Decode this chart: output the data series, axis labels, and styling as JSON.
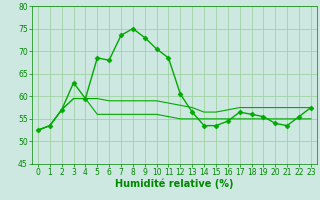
{
  "line1": {
    "x": [
      0,
      1,
      2,
      3,
      4,
      5,
      6,
      7,
      8,
      9,
      10,
      11,
      12,
      13,
      14,
      15,
      16,
      17,
      18,
      19,
      20,
      21,
      22,
      23
    ],
    "y": [
      52.5,
      53.5,
      57,
      63,
      59.5,
      68.5,
      68,
      73.5,
      75,
      73,
      70.5,
      68.5,
      60.5,
      56.5,
      53.5,
      53.5,
      54.5,
      56.5,
      56,
      55.5,
      54,
      53.5,
      55.5,
      57.5
    ],
    "color": "#00aa00",
    "marker": "D",
    "markersize": 2.5,
    "linewidth": 1.0
  },
  "line2": {
    "x": [
      0,
      1,
      2,
      3,
      4,
      5,
      6,
      7,
      8,
      9,
      10,
      11,
      12,
      13,
      14,
      15,
      16,
      17,
      18,
      19,
      20,
      21,
      22,
      23
    ],
    "y": [
      52.5,
      53.5,
      57,
      59.5,
      59.5,
      59.5,
      59,
      59,
      59,
      59,
      59,
      58.5,
      58,
      57.5,
      56.5,
      56.5,
      57,
      57.5,
      57.5,
      57.5,
      57.5,
      57.5,
      57.5,
      57.5
    ],
    "color": "#00aa00",
    "marker": null,
    "linewidth": 0.8
  },
  "line3": {
    "x": [
      0,
      1,
      2,
      3,
      4,
      5,
      6,
      7,
      8,
      9,
      10,
      11,
      12,
      13,
      14,
      15,
      16,
      17,
      18,
      19,
      20,
      21,
      22,
      23
    ],
    "y": [
      52.5,
      53.5,
      57,
      59.5,
      59.5,
      56,
      56,
      56,
      56,
      56,
      56,
      55.5,
      55,
      55,
      55,
      55,
      55,
      55,
      55,
      55,
      55,
      55,
      55,
      55
    ],
    "color": "#00aa00",
    "marker": null,
    "linewidth": 0.8
  },
  "xlabel": "Humidité relative (%)",
  "xlabel_color": "#008800",
  "xlabel_fontsize": 7,
  "xlim": [
    -0.5,
    23.5
  ],
  "ylim": [
    45,
    80
  ],
  "yticks": [
    45,
    50,
    55,
    60,
    65,
    70,
    75,
    80
  ],
  "xticks": [
    0,
    1,
    2,
    3,
    4,
    5,
    6,
    7,
    8,
    9,
    10,
    11,
    12,
    13,
    14,
    15,
    16,
    17,
    18,
    19,
    20,
    21,
    22,
    23
  ],
  "grid_color": "#99cc99",
  "bg_color": "#cce8e0",
  "tick_color": "#008800",
  "tick_fontsize": 5.5,
  "spine_color": "#008800"
}
